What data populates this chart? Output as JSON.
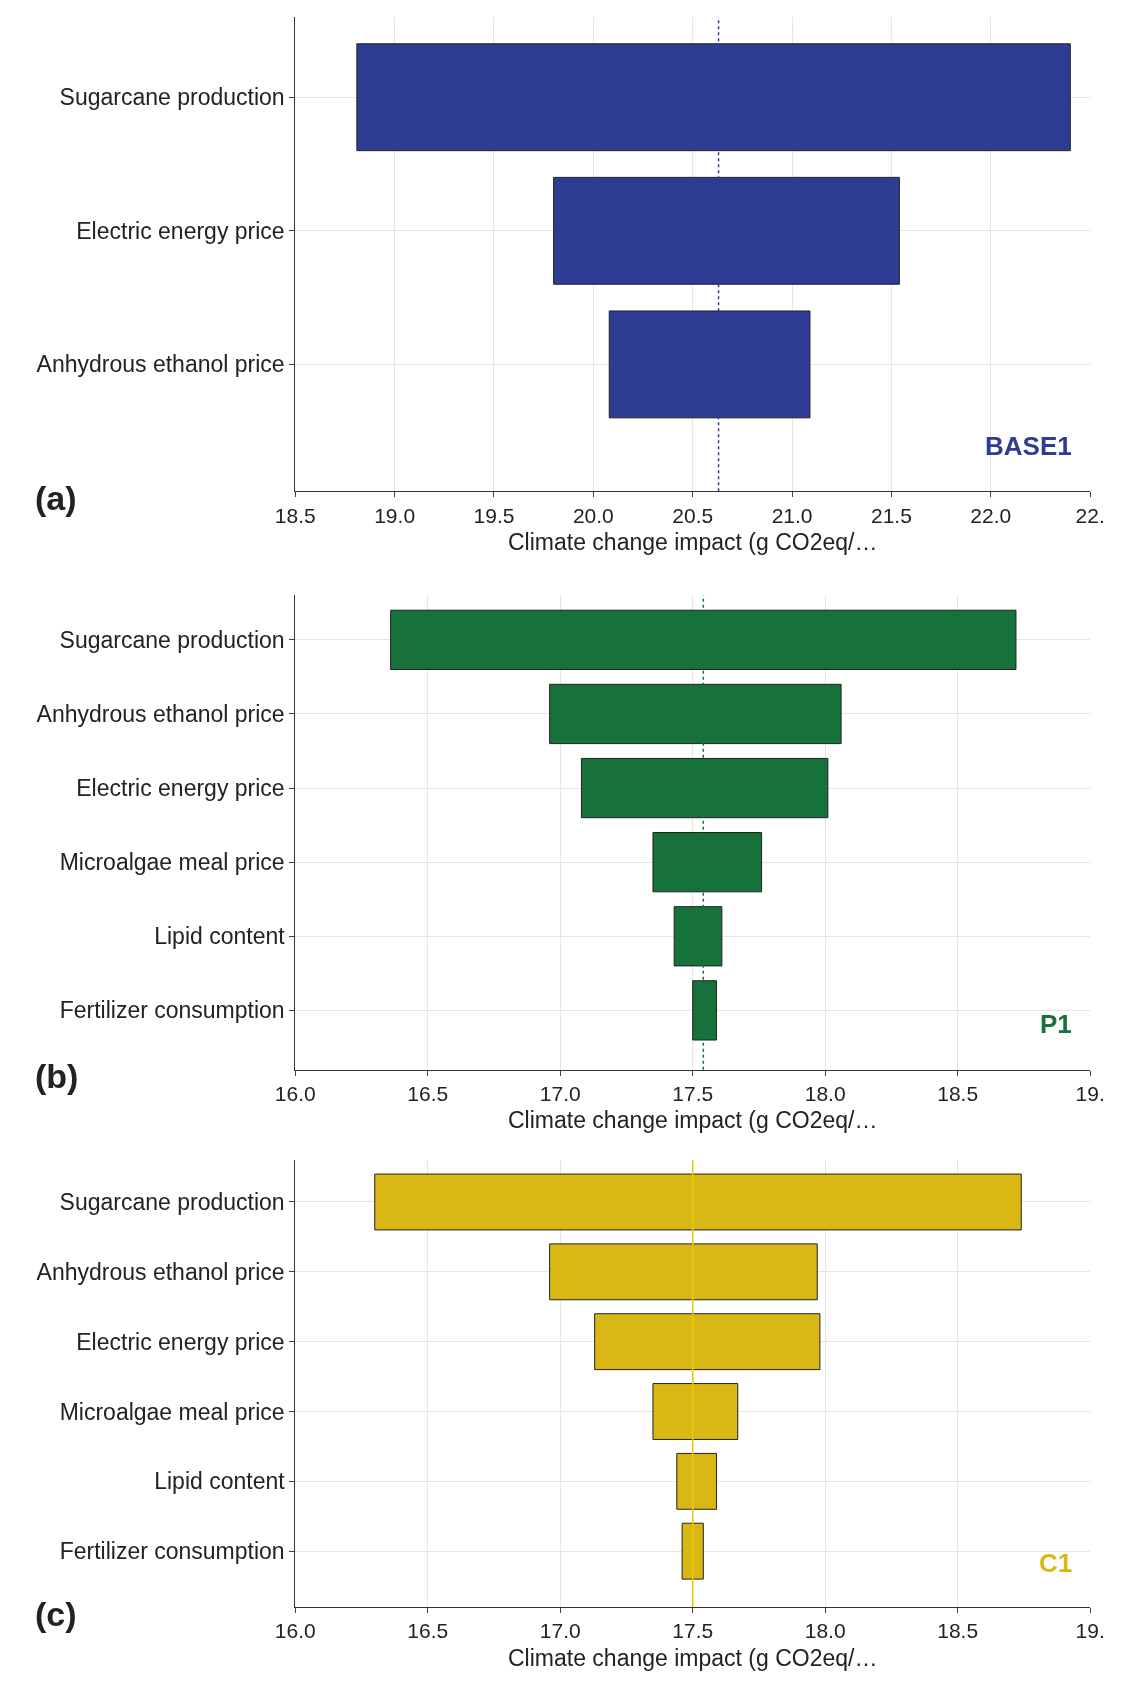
{
  "chart_data": [
    {
      "type": "bar",
      "orientation": "horizontal",
      "categories": [
        "Sugarcane production",
        "Electric energy price",
        "Anhydrous ethanol price"
      ],
      "series": [
        {
          "name": "BASE1",
          "color": "#2e3c94",
          "values": [
            3.59,
            1.74,
            1.01
          ],
          "base": [
            18.81,
            19.8,
            20.08
          ]
        }
      ],
      "xlim": [
        18.5,
        22.5
      ],
      "xticks": [
        18.5,
        {
          "value": 19,
          "label": "19.0"
        },
        19.5,
        {
          "value": 20,
          "label": "20.0"
        },
        20.5,
        {
          "value": 21,
          "label": "21.0"
        },
        21.5,
        {
          "value": 22,
          "label": "22.0"
        },
        {
          "value": 22.5,
          "label": "22."
        }
      ],
      "xlabel": "Climate change impact (g CO2eq/…",
      "grid": true,
      "ref_lines": [
        {
          "axis": "x",
          "value": 20.63,
          "color": "#2e3c94",
          "line_style": "dotted"
        }
      ],
      "annotations": [
        "(a)"
      ]
    },
    {
      "type": "bar",
      "orientation": "horizontal",
      "categories": [
        "Sugarcane production",
        "Anhydrous ethanol price",
        "Electric energy price",
        "Microalgae meal price",
        "Lipid content",
        "Fertilizer consumption"
      ],
      "series": [
        {
          "name": "P1",
          "color": "#17713a",
          "values": [
            2.36,
            1.1,
            0.93,
            0.41,
            0.18,
            0.09
          ],
          "base": [
            16.36,
            16.96,
            17.08,
            17.35,
            17.43,
            17.5
          ]
        }
      ],
      "xlim": [
        16.0,
        19.0
      ],
      "xticks": [
        {
          "value": 16,
          "label": "16.0"
        },
        16.5,
        {
          "value": 17,
          "label": "17.0"
        },
        17.5,
        {
          "value": 18,
          "label": "18.0"
        },
        18.5,
        {
          "value": 19,
          "label": "19."
        }
      ],
      "xlabel": "Climate change impact (g CO2eq/…",
      "grid": true,
      "ref_lines": [
        {
          "axis": "x",
          "value": 17.54,
          "color": "#17713a",
          "line_style": "dotted"
        }
      ],
      "annotations": [
        "(b)"
      ]
    },
    {
      "type": "bar",
      "orientation": "horizontal",
      "categories": [
        "Sugarcane production",
        "Anhydrous ethanol price",
        "Electric energy price",
        "Microalgae meal price",
        "Lipid content",
        "Fertilizer consumption"
      ],
      "series": [
        {
          "name": "C1",
          "color": "#d9b816",
          "values": [
            2.44,
            1.01,
            0.85,
            0.32,
            0.15,
            0.08
          ],
          "base": [
            16.3,
            16.96,
            17.13,
            17.35,
            17.44,
            17.46
          ]
        }
      ],
      "xlim": [
        16.0,
        19.0
      ],
      "xticks": [
        {
          "value": 16,
          "label": "16.0"
        },
        16.5,
        {
          "value": 17,
          "label": "17.0"
        },
        17.5,
        {
          "value": 18,
          "label": "18.0"
        },
        18.5,
        {
          "value": 19,
          "label": "19."
        }
      ],
      "xlabel": "Climate change impact (g CO2eq/…",
      "grid": true,
      "ref_lines": [
        {
          "axis": "x",
          "value": 17.5,
          "color": "#e8c800",
          "line_style": "solid"
        }
      ],
      "annotations": [
        "(c)"
      ]
    }
  ]
}
